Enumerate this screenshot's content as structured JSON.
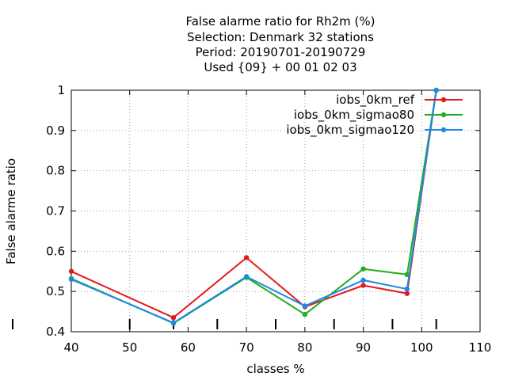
{
  "chart_data": {
    "type": "line",
    "title_lines": [
      "False alarme ratio  for Rh2m (%)",
      "Selection: Denmark     32 stations",
      "Period: 20190701-20190729",
      "Used {09} + 00 01 02 03"
    ],
    "xlabel": "classes %",
    "ylabel": "False alarme ratio",
    "xlim": [
      40,
      110
    ],
    "ylim": [
      0.4,
      1.0
    ],
    "xticks": [
      40,
      50,
      60,
      70,
      80,
      90,
      100,
      110
    ],
    "yticks": [
      0.4,
      0.5,
      0.6,
      0.7,
      0.8,
      0.9,
      1.0
    ],
    "ytick_labels": [
      "0.4",
      "0.5",
      "0.6",
      "0.7",
      "0.8",
      "0.9",
      "1"
    ],
    "grid": true,
    "legend_position": "top-right",
    "series": [
      {
        "name": "iobs_0km_ref",
        "color": "#e31a1c",
        "x": [
          40,
          57.5,
          70,
          80,
          90,
          97.5,
          102.5
        ],
        "y": [
          0.55,
          0.435,
          0.584,
          0.462,
          0.515,
          0.495,
          1.0
        ]
      },
      {
        "name": "iobs_0km_sigmao80",
        "color": "#1fae1f",
        "x": [
          40,
          57.5,
          70,
          80,
          90,
          97.5,
          102.5
        ],
        "y": [
          0.532,
          0.421,
          0.535,
          0.443,
          0.556,
          0.542,
          1.0
        ]
      },
      {
        "name": "iobs_0km_sigmao120",
        "color": "#1e88e5",
        "x": [
          40,
          57.5,
          70,
          80,
          90,
          97.5,
          102.5
        ],
        "y": [
          0.53,
          0.422,
          0.537,
          0.464,
          0.528,
          0.506,
          1.0
        ]
      }
    ],
    "bottom_markers": [
      50,
      57.5,
      65,
      75,
      85,
      95,
      102.5
    ]
  }
}
